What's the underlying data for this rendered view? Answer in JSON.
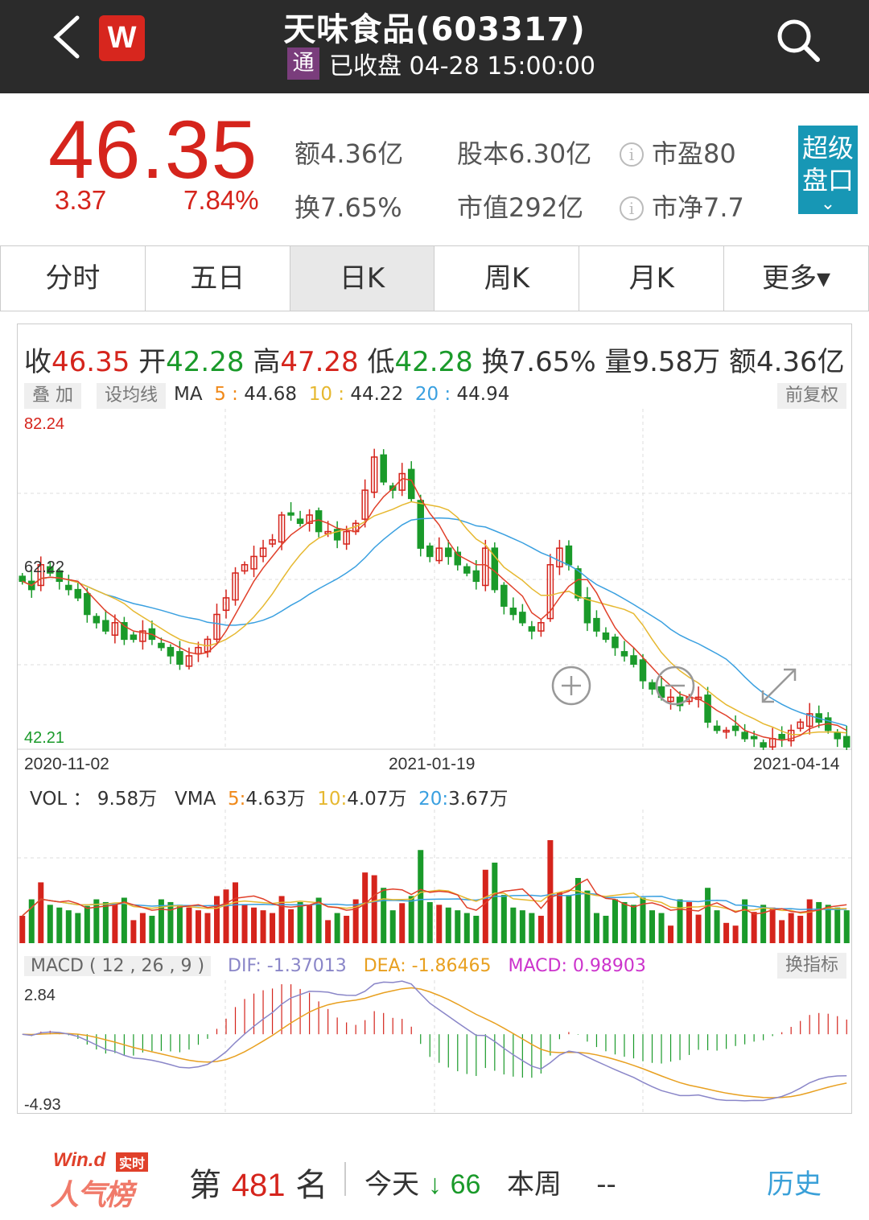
{
  "header": {
    "title": "天味食品(603317)",
    "badge": "通",
    "status": "已收盘 04-28 15:00:00",
    "logo": "W"
  },
  "quote": {
    "price": "46.35",
    "change": "3.37",
    "change_pct": "7.84%",
    "amount_label": "额",
    "amount": "4.36亿",
    "turnover_label": "换",
    "turnover": "7.65%",
    "share_cap_label": "股本",
    "share_cap": "6.30亿",
    "mkt_cap_label": "市值",
    "mkt_cap": "292亿",
    "pe_label": "市盈",
    "pe": "80",
    "pb_label": "市净",
    "pb": "7.7",
    "super_btn_line1": "超级",
    "super_btn_line2": "盘口"
  },
  "tabs": [
    "分时",
    "五日",
    "日K",
    "周K",
    "月K",
    "更多▾"
  ],
  "ohlc": {
    "close_label": "收",
    "close": "46.35",
    "open_label": "开",
    "open": "42.28",
    "high_label": "高",
    "high": "47.28",
    "low_label": "低",
    "low": "42.28",
    "turn_label": "换",
    "turn": "7.65%",
    "vol_label": "量",
    "vol": "9.58万",
    "amt_label": "额",
    "amt": "4.36亿"
  },
  "kline": {
    "overlay_btn": "叠 加",
    "set_ma_btn": "设均线",
    "ma_label": "MA",
    "ma5_label": "5",
    "ma5": "44.68",
    "ma10_label": "10",
    "ma10": "44.22",
    "ma20_label": "20",
    "ma20": "44.94",
    "adjust_btn": "前复权",
    "y_max": "82.24",
    "y_mid": "62.22",
    "y_min": "42.21",
    "date_start": "2020-11-02",
    "date_mid": "2021-01-19",
    "date_end": "2021-04-14"
  },
  "volume": {
    "vol_label": "VOL ：",
    "vol": "9.58万",
    "vma_label": "VMA",
    "v5_label": "5",
    "v5": "4.63万",
    "v10_label": "10",
    "v10": "4.07万",
    "v20_label": "20",
    "v20": "3.67万"
  },
  "macd": {
    "title": "MACD ( 12 , 26 , 9 )",
    "dif": "DIF: -1.37013",
    "dea": "DEA: -1.86465",
    "macd": "MACD: 0.98903",
    "switch_btn": "换指标",
    "y_max": "2.84",
    "y_min": "-4.93"
  },
  "footer": {
    "brand_top": "Win.d",
    "brand_badge": "实时",
    "brand_bottom": "人气榜",
    "rank_prefix": "第",
    "rank": "481",
    "rank_suffix": "名",
    "today_label": "今天",
    "today_arrow": "↓",
    "today_value": "66",
    "week_label": "本周",
    "week_value": "--",
    "history": "历史"
  },
  "colors": {
    "up": "#d5241c",
    "down": "#1a9a2a",
    "header_bg": "#2b2b2b",
    "accent": "#1797b5"
  },
  "chart_data": {
    "type": "candlestick",
    "y_range": [
      42.21,
      82.24
    ],
    "x_range": [
      "2020-11-02",
      "2021-04-14"
    ],
    "close": [
      62,
      61,
      64,
      63,
      62,
      61,
      60,
      58,
      57,
      56,
      57,
      55,
      55,
      56,
      55,
      54,
      53,
      52,
      53,
      54,
      55,
      58,
      60,
      63,
      64,
      65,
      66,
      67,
      70,
      70,
      69,
      70,
      68,
      68,
      67,
      68,
      69,
      73,
      77,
      74,
      73,
      75,
      72,
      66,
      65,
      66,
      65,
      64,
      63,
      62,
      66,
      61,
      59,
      58,
      57,
      56,
      57,
      64,
      66,
      64,
      60,
      57,
      56,
      55,
      54,
      53,
      52,
      50,
      49,
      48,
      48,
      47,
      48,
      48,
      45,
      44,
      44,
      44,
      43,
      43,
      42,
      43,
      43,
      44,
      45,
      46,
      45,
      44,
      43,
      42
    ]
  }
}
